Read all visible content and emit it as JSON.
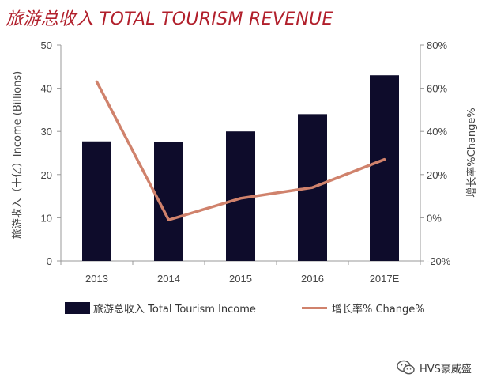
{
  "title": "旅游总收入 TOTAL TOURISM REVENUE",
  "watermark": {
    "text": "HVS豪威盛",
    "icon": "wechat-icon"
  },
  "colors": {
    "title": "#b11f2b",
    "bar": "#0e0c2b",
    "line": "#d0826c",
    "axis": "#999999"
  },
  "chart_data": {
    "type": "bar",
    "categories": [
      "2013",
      "2014",
      "2015",
      "2016",
      "2017E"
    ],
    "series": [
      {
        "name": "旅游总收入 Total Tourism Income",
        "type": "bar",
        "axis": "left",
        "values": [
          27.7,
          27.5,
          30.0,
          34.0,
          43.0
        ]
      },
      {
        "name": "增长率% Change%",
        "type": "line",
        "axis": "right",
        "values": [
          63,
          -1,
          9,
          14,
          27
        ]
      }
    ],
    "ylabel": "旅游收入（十亿）Income (Billions)",
    "ylim": [
      0,
      50
    ],
    "yticks": [
      "0",
      "10",
      "20",
      "30",
      "40",
      "50"
    ],
    "y2label": "增长率%Change%",
    "y2lim": [
      -20,
      80
    ],
    "y2ticks": [
      "-20%",
      "0%",
      "20%",
      "40%",
      "60%",
      "80%"
    ],
    "grid": false,
    "legend_position": "bottom"
  }
}
